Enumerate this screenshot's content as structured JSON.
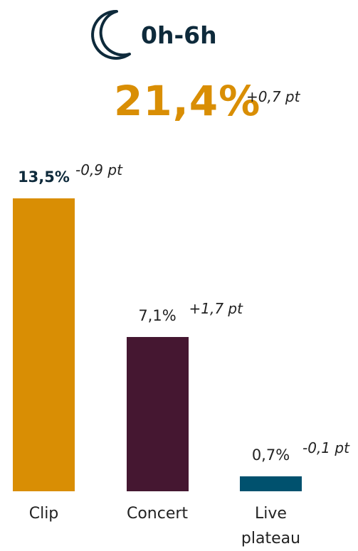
{
  "chart_data": {
    "type": "bar",
    "title": "0h-6h",
    "total": "21,4%",
    "total_change": "+0,7 pt",
    "categories": [
      "Clip",
      "Concert",
      "Live plateau"
    ],
    "values": [
      13.5,
      7.1,
      0.7
    ],
    "value_labels": [
      "13,5%",
      "7,1%",
      "0,7%"
    ],
    "changes": [
      "-0,9 pt",
      "+1,7 pt",
      "-0,1 pt"
    ],
    "colors": [
      "#d98e04",
      "#451731",
      "#00516e"
    ]
  }
}
